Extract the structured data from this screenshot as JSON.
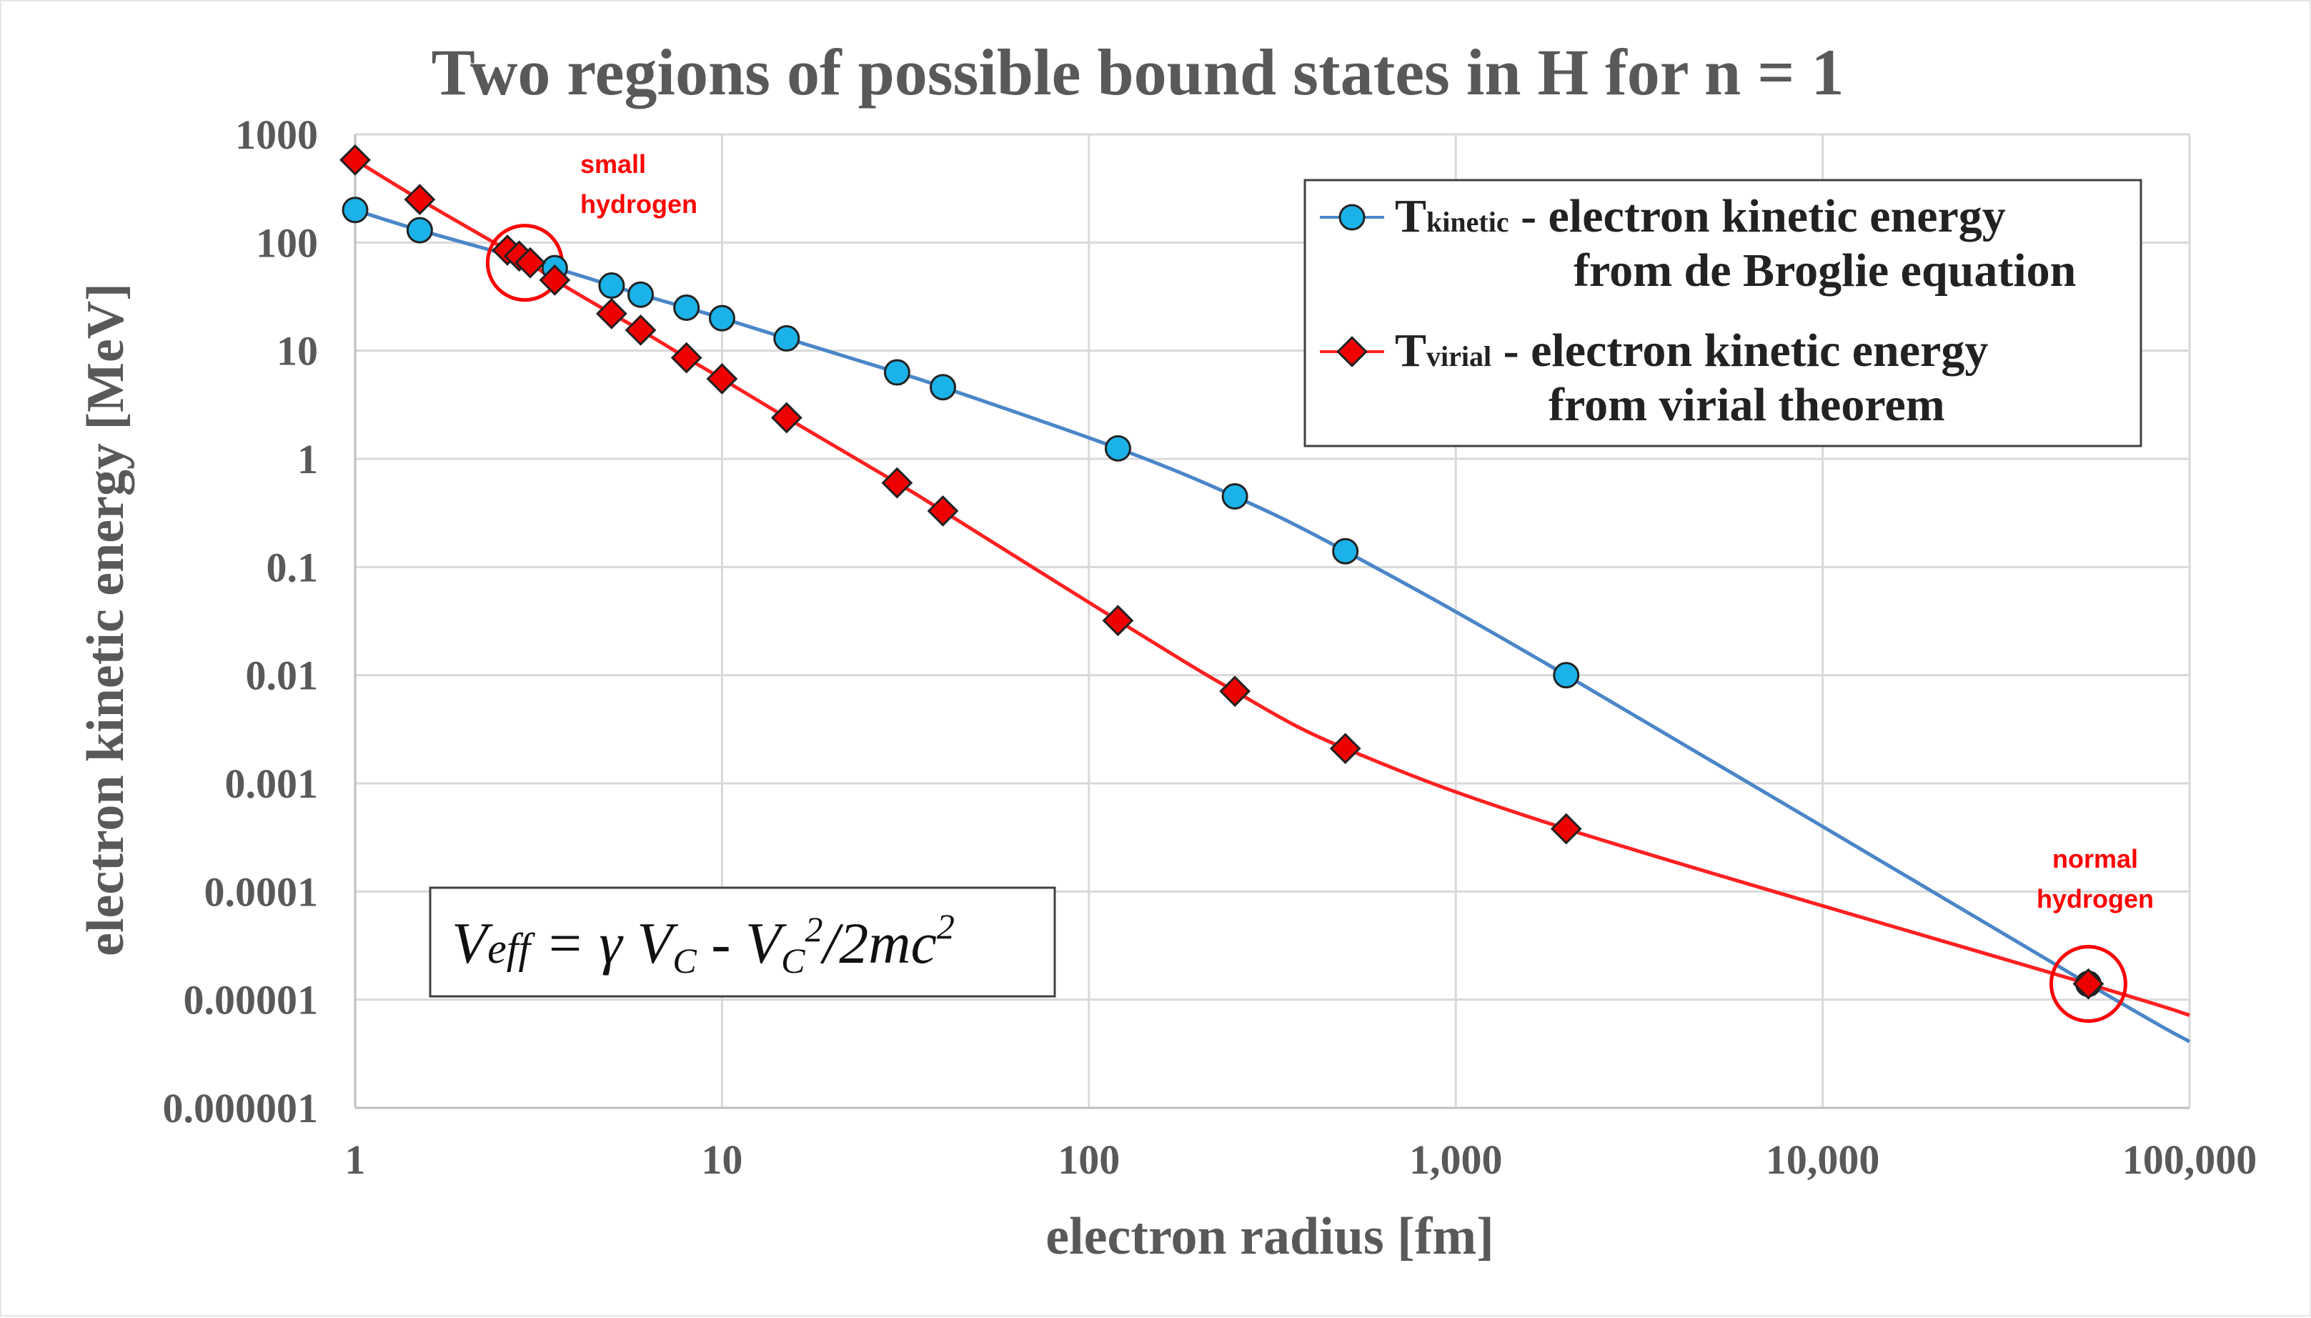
{
  "chart_data": {
    "type": "scatter",
    "title": "Two regions of possible bound states in H for n = 1",
    "xlabel": "electron radius [fm]",
    "ylabel": "electron kinetic energy  [MeV]",
    "xscale": "log",
    "yscale": "log",
    "xlim": [
      1,
      100000
    ],
    "ylim": [
      1e-06,
      1000
    ],
    "grid": true,
    "legend_position": "top-right",
    "x_ticks": [
      {
        "value": 1,
        "label": "1"
      },
      {
        "value": 10,
        "label": "10"
      },
      {
        "value": 100,
        "label": "100"
      },
      {
        "value": 1000,
        "label": "1,000"
      },
      {
        "value": 10000,
        "label": "10,000"
      },
      {
        "value": 100000,
        "label": "100,000"
      }
    ],
    "y_ticks": [
      {
        "value": 1000,
        "label": "1000"
      },
      {
        "value": 100,
        "label": "100"
      },
      {
        "value": 10,
        "label": "10"
      },
      {
        "value": 1,
        "label": "1"
      },
      {
        "value": 0.1,
        "label": "0.1"
      },
      {
        "value": 0.01,
        "label": "0.01"
      },
      {
        "value": 0.001,
        "label": "0.001"
      },
      {
        "value": 0.0001,
        "label": "0.0001"
      },
      {
        "value": 1e-05,
        "label": "0.00001"
      },
      {
        "value": 1e-06,
        "label": "0.000001"
      }
    ],
    "series": [
      {
        "name_main": "T",
        "name_sub": "kinetic",
        "legend_line1": " - electron kinetic energy",
        "legend_line2": "from de Broglie equation",
        "marker": "circle",
        "color": "#4a86c8",
        "marker_color": "#1ab2e8",
        "points": [
          {
            "x": 1,
            "y": 200
          },
          {
            "x": 1.5,
            "y": 130
          },
          {
            "x": 3.5,
            "y": 58
          },
          {
            "x": 5,
            "y": 40
          },
          {
            "x": 6,
            "y": 33
          },
          {
            "x": 8,
            "y": 25
          },
          {
            "x": 10,
            "y": 20
          },
          {
            "x": 15,
            "y": 13
          },
          {
            "x": 30,
            "y": 6.3
          },
          {
            "x": 40,
            "y": 4.6
          },
          {
            "x": 120,
            "y": 1.25
          },
          {
            "x": 250,
            "y": 0.45
          },
          {
            "x": 500,
            "y": 0.14
          },
          {
            "x": 2000,
            "y": 0.01
          },
          {
            "x": 53000,
            "y": 1.4e-05
          }
        ],
        "line_extension": {
          "x": 100000,
          "y": 4.1e-06
        }
      },
      {
        "name_main": "T",
        "name_sub": "virial",
        "legend_line1": " - electron kinetic energy",
        "legend_line2": "from virial theorem",
        "marker": "diamond",
        "color": "#ff2020",
        "marker_color": "#ee0000",
        "points": [
          {
            "x": 1,
            "y": 580
          },
          {
            "x": 1.5,
            "y": 250
          },
          {
            "x": 2.6,
            "y": 85
          },
          {
            "x": 2.8,
            "y": 75
          },
          {
            "x": 3,
            "y": 65
          },
          {
            "x": 3.5,
            "y": 45
          },
          {
            "x": 5,
            "y": 22
          },
          {
            "x": 6,
            "y": 15.5
          },
          {
            "x": 8,
            "y": 8.6
          },
          {
            "x": 10,
            "y": 5.5
          },
          {
            "x": 15,
            "y": 2.4
          },
          {
            "x": 30,
            "y": 0.6
          },
          {
            "x": 40,
            "y": 0.33
          },
          {
            "x": 120,
            "y": 0.032
          },
          {
            "x": 250,
            "y": 0.0071
          },
          {
            "x": 500,
            "y": 0.0021
          },
          {
            "x": 2000,
            "y": 0.00038
          },
          {
            "x": 53000,
            "y": 1.4e-05
          }
        ],
        "line_extension": {
          "x": 100000,
          "y": 7.2e-06
        }
      }
    ],
    "annotations": [
      {
        "text_lines": [
          "small",
          "hydrogen"
        ],
        "circle_center": {
          "x": 2.9,
          "y": 65
        },
        "color": "#ff0000"
      },
      {
        "text_lines": [
          "normal",
          "hydrogen"
        ],
        "circle_center": {
          "x": 53000,
          "y": 1.4e-05
        },
        "color": "#ff0000"
      }
    ],
    "equation": {
      "lhs_V": "V",
      "lhs_sub": "eff",
      "eq": " = γ ",
      "V1": "V",
      "V1_sub": "C",
      "minus": " - ",
      "V2": "V",
      "V2_sub": "C",
      "V2_sup": "2",
      "tail": "/2mc",
      "tail_sup": "2"
    }
  }
}
